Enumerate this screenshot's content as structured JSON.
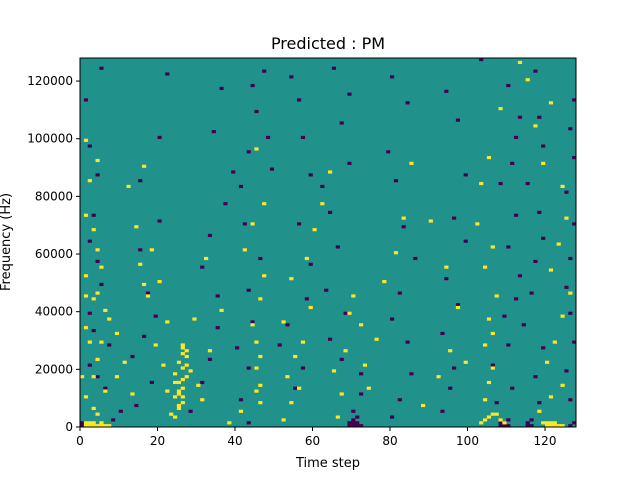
{
  "chart_data": {
    "type": "heatmap",
    "title": "Predicted : PM",
    "xlabel": "Time step",
    "ylabel": "Frequency (Hz)",
    "xlim": [
      0,
      128
    ],
    "ylim": [
      0,
      128000
    ],
    "x_ticks": [
      0,
      20,
      40,
      60,
      80,
      100,
      120
    ],
    "x_tick_labels": [
      "0",
      "20",
      "40",
      "60",
      "80",
      "100",
      "120"
    ],
    "y_ticks": [
      0,
      20000,
      40000,
      60000,
      80000,
      100000,
      120000
    ],
    "y_tick_labels": [
      "0",
      "20000",
      "40000",
      "60000",
      "80000",
      "100000",
      "120000"
    ],
    "grid": false,
    "legend": "none",
    "colormap": {
      "low": "#440154",
      "mid": "#21918c",
      "high": "#fde725"
    },
    "background_value": 0,
    "cells_high": [
      [
        1,
        0
      ],
      [
        2,
        0
      ],
      [
        3,
        0
      ],
      [
        4,
        0
      ],
      [
        5,
        0
      ],
      [
        6,
        0
      ],
      [
        7,
        0
      ],
      [
        1,
        1
      ],
      [
        2,
        1
      ],
      [
        3,
        1
      ],
      [
        5,
        1
      ],
      [
        4,
        4
      ],
      [
        3,
        6
      ],
      [
        1,
        10
      ],
      [
        6,
        12
      ],
      [
        0,
        17
      ],
      [
        3,
        17
      ],
      [
        9,
        17
      ],
      [
        4,
        23
      ],
      [
        2,
        29
      ],
      [
        5,
        29
      ],
      [
        1,
        34
      ],
      [
        7,
        37
      ],
      [
        3,
        44
      ],
      [
        4,
        46
      ],
      [
        6,
        40
      ],
      [
        1,
        45
      ],
      [
        1,
        52
      ],
      [
        5,
        55
      ],
      [
        4,
        61
      ],
      [
        3,
        68
      ],
      [
        1,
        73
      ],
      [
        2,
        85
      ],
      [
        4,
        92
      ],
      [
        1,
        99
      ],
      [
        24,
        3
      ],
      [
        25,
        6
      ],
      [
        25,
        7
      ],
      [
        26,
        8
      ],
      [
        24,
        10
      ],
      [
        26,
        10
      ],
      [
        25,
        11
      ],
      [
        25,
        12
      ],
      [
        26,
        13
      ],
      [
        24,
        15
      ],
      [
        25,
        15
      ],
      [
        26,
        16
      ],
      [
        27,
        17
      ],
      [
        24,
        18
      ],
      [
        26,
        20
      ],
      [
        27,
        21
      ],
      [
        25,
        22
      ],
      [
        27,
        24
      ],
      [
        26,
        25
      ],
      [
        27,
        26
      ],
      [
        26,
        27
      ],
      [
        26,
        28
      ],
      [
        28,
        19
      ],
      [
        30,
        14
      ],
      [
        29,
        37
      ],
      [
        32,
        58
      ],
      [
        36,
        40
      ],
      [
        33,
        26
      ],
      [
        31,
        9
      ],
      [
        38,
        1
      ],
      [
        41,
        5
      ],
      [
        46,
        8
      ],
      [
        45,
        12
      ],
      [
        46,
        14
      ],
      [
        45,
        20
      ],
      [
        46,
        24
      ],
      [
        45,
        29
      ],
      [
        44,
        35
      ],
      [
        46,
        44
      ],
      [
        47,
        52
      ],
      [
        42,
        61
      ],
      [
        44,
        70
      ],
      [
        47,
        77
      ],
      [
        45,
        96
      ],
      [
        22,
        12
      ],
      [
        21,
        21
      ],
      [
        19,
        28
      ],
      [
        22,
        36
      ],
      [
        17,
        45
      ],
      [
        20,
        50
      ],
      [
        23,
        4
      ],
      [
        16,
        49
      ],
      [
        13,
        11
      ],
      [
        11,
        22
      ],
      [
        9,
        32
      ],
      [
        15,
        56
      ],
      [
        18,
        61
      ],
      [
        14,
        69
      ],
      [
        12,
        83
      ],
      [
        16,
        90
      ],
      [
        52,
        2
      ],
      [
        54,
        8
      ],
      [
        56,
        13
      ],
      [
        53,
        17
      ],
      [
        55,
        24
      ],
      [
        57,
        29
      ],
      [
        52,
        36
      ],
      [
        59,
        41
      ],
      [
        54,
        51
      ],
      [
        58,
        58
      ],
      [
        60,
        68
      ],
      [
        62,
        77
      ],
      [
        64,
        88
      ],
      [
        66,
        3
      ],
      [
        67,
        11
      ],
      [
        65,
        19
      ],
      [
        68,
        26
      ],
      [
        69,
        39
      ],
      [
        70,
        45
      ],
      [
        72,
        35
      ],
      [
        74,
        13
      ],
      [
        73,
        21
      ],
      [
        76,
        30
      ],
      [
        78,
        50
      ],
      [
        81,
        60
      ],
      [
        83,
        72
      ],
      [
        85,
        91
      ],
      [
        88,
        7
      ],
      [
        92,
        17
      ],
      [
        95,
        26
      ],
      [
        99,
        22
      ],
      [
        97,
        41
      ],
      [
        94,
        55
      ],
      [
        90,
        71
      ],
      [
        103,
        1
      ],
      [
        104,
        2
      ],
      [
        105,
        3
      ],
      [
        106,
        4
      ],
      [
        107,
        4
      ],
      [
        108,
        2
      ],
      [
        109,
        1
      ],
      [
        104,
        9
      ],
      [
        105,
        15
      ],
      [
        106,
        20
      ],
      [
        104,
        28
      ],
      [
        106,
        32
      ],
      [
        105,
        37
      ],
      [
        107,
        45
      ],
      [
        104,
        55
      ],
      [
        106,
        62
      ],
      [
        102,
        70
      ],
      [
        103,
        84
      ],
      [
        105,
        93
      ],
      [
        108,
        110
      ],
      [
        120,
        0
      ],
      [
        121,
        0
      ],
      [
        122,
        0
      ],
      [
        123,
        0
      ],
      [
        124,
        0
      ],
      [
        119,
        1
      ],
      [
        120,
        1
      ],
      [
        121,
        1
      ],
      [
        122,
        1
      ],
      [
        118,
        5
      ],
      [
        121,
        10
      ],
      [
        124,
        14
      ],
      [
        120,
        22
      ],
      [
        122,
        29
      ],
      [
        124,
        38
      ],
      [
        126,
        46
      ],
      [
        121,
        54
      ],
      [
        123,
        63
      ],
      [
        125,
        72
      ],
      [
        124,
        83
      ],
      [
        119,
        91
      ],
      [
        117,
        104
      ],
      [
        121,
        112
      ],
      [
        115,
        120
      ],
      [
        113,
        126
      ]
    ],
    "cells_low": [
      [
        0,
        0
      ],
      [
        0,
        1
      ],
      [
        8,
        2
      ],
      [
        10,
        5
      ],
      [
        6,
        13
      ],
      [
        4,
        17
      ],
      [
        2,
        21
      ],
      [
        7,
        28
      ],
      [
        3,
        33
      ],
      [
        2,
        39
      ],
      [
        5,
        49
      ],
      [
        4,
        57
      ],
      [
        2,
        64
      ],
      [
        3,
        73
      ],
      [
        4,
        87
      ],
      [
        2,
        97
      ],
      [
        1,
        113
      ],
      [
        5,
        124
      ],
      [
        14,
        7
      ],
      [
        18,
        15
      ],
      [
        13,
        24
      ],
      [
        16,
        31
      ],
      [
        19,
        38
      ],
      [
        17,
        46
      ],
      [
        15,
        61
      ],
      [
        20,
        71
      ],
      [
        15,
        85
      ],
      [
        20,
        100
      ],
      [
        22,
        122
      ],
      [
        28,
        5
      ],
      [
        31,
        15
      ],
      [
        33,
        23
      ],
      [
        35,
        34
      ],
      [
        35,
        45
      ],
      [
        31,
        55
      ],
      [
        33,
        66
      ],
      [
        37,
        77
      ],
      [
        39,
        88
      ],
      [
        34,
        102
      ],
      [
        36,
        117
      ],
      [
        43,
        1
      ],
      [
        41,
        9
      ],
      [
        43,
        20
      ],
      [
        40,
        27
      ],
      [
        44,
        36
      ],
      [
        43,
        47
      ],
      [
        46,
        58
      ],
      [
        42,
        70
      ],
      [
        41,
        83
      ],
      [
        43,
        95
      ],
      [
        45,
        109
      ],
      [
        44,
        118
      ],
      [
        47,
        123
      ],
      [
        49,
        89
      ],
      [
        48,
        100
      ],
      [
        55,
        13
      ],
      [
        57,
        20
      ],
      [
        51,
        28
      ],
      [
        53,
        35
      ],
      [
        58,
        44
      ],
      [
        59,
        56
      ],
      [
        56,
        70
      ],
      [
        59,
        87
      ],
      [
        57,
        100
      ],
      [
        56,
        113
      ],
      [
        54,
        121
      ],
      [
        69,
        0
      ],
      [
        70,
        0
      ],
      [
        71,
        0
      ],
      [
        72,
        0
      ],
      [
        69,
        1
      ],
      [
        70,
        1
      ],
      [
        71,
        1
      ],
      [
        70,
        2
      ],
      [
        71,
        3
      ],
      [
        70,
        5
      ],
      [
        72,
        11
      ],
      [
        72,
        18
      ],
      [
        67,
        23
      ],
      [
        64,
        30
      ],
      [
        68,
        39
      ],
      [
        63,
        47
      ],
      [
        66,
        62
      ],
      [
        64,
        74
      ],
      [
        62,
        83
      ],
      [
        69,
        91
      ],
      [
        67,
        105
      ],
      [
        69,
        115
      ],
      [
        65,
        124
      ],
      [
        80,
        3
      ],
      [
        82,
        9
      ],
      [
        85,
        18
      ],
      [
        84,
        29
      ],
      [
        80,
        37
      ],
      [
        82,
        46
      ],
      [
        86,
        58
      ],
      [
        83,
        69
      ],
      [
        81,
        85
      ],
      [
        79,
        95
      ],
      [
        84,
        112
      ],
      [
        80,
        121
      ],
      [
        93,
        5
      ],
      [
        95,
        13
      ],
      [
        96,
        20
      ],
      [
        93,
        32
      ],
      [
        97,
        42
      ],
      [
        94,
        51
      ],
      [
        99,
        64
      ],
      [
        96,
        72
      ],
      [
        99,
        87
      ],
      [
        97,
        106
      ],
      [
        94,
        116
      ],
      [
        103,
        127
      ],
      [
        108,
        0
      ],
      [
        109,
        0
      ],
      [
        110,
        0
      ],
      [
        108,
        1
      ],
      [
        109,
        1
      ],
      [
        110,
        2
      ],
      [
        107,
        8
      ],
      [
        111,
        13
      ],
      [
        106,
        21
      ],
      [
        110,
        28
      ],
      [
        109,
        38
      ],
      [
        112,
        44
      ],
      [
        113,
        52
      ],
      [
        110,
        62
      ],
      [
        112,
        73
      ],
      [
        108,
        84
      ],
      [
        111,
        91
      ],
      [
        112,
        100
      ],
      [
        110,
        118
      ],
      [
        113,
        107
      ],
      [
        115,
        0
      ],
      [
        116,
        0
      ],
      [
        115,
        1
      ],
      [
        116,
        2
      ],
      [
        118,
        8
      ],
      [
        117,
        17
      ],
      [
        119,
        27
      ],
      [
        114,
        35
      ],
      [
        116,
        46
      ],
      [
        117,
        57
      ],
      [
        119,
        65
      ],
      [
        118,
        74
      ],
      [
        115,
        84
      ],
      [
        119,
        97
      ],
      [
        118,
        107
      ],
      [
        117,
        123
      ],
      [
        126,
        0
      ],
      [
        127,
        1
      ],
      [
        126,
        9
      ],
      [
        125,
        19
      ],
      [
        127,
        29
      ],
      [
        126,
        39
      ],
      [
        125,
        48
      ],
      [
        126,
        58
      ],
      [
        127,
        70
      ],
      [
        125,
        81
      ],
      [
        127,
        93
      ],
      [
        126,
        103
      ],
      [
        127,
        113
      ]
    ]
  }
}
